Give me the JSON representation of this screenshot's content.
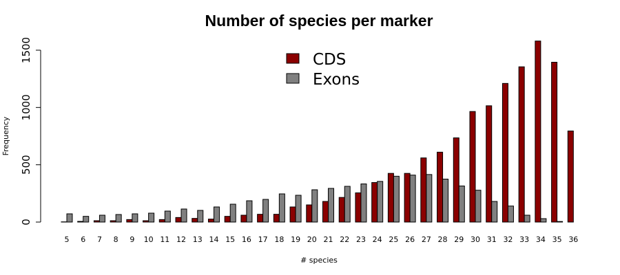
{
  "chart_data": {
    "type": "bar",
    "title": "Number of species per marker",
    "xlabel": "# species",
    "ylabel": "Frequency",
    "ylim": [
      0,
      1600
    ],
    "yticks": [
      0,
      500,
      1000,
      1500
    ],
    "grid": false,
    "legend_position": "top-center",
    "categories": [
      "5",
      "6",
      "7",
      "8",
      "9",
      "10",
      "11",
      "12",
      "13",
      "14",
      "15",
      "16",
      "17",
      "18",
      "19",
      "20",
      "21",
      "22",
      "23",
      "24",
      "25",
      "26",
      "27",
      "28",
      "29",
      "30",
      "31",
      "32",
      "33",
      "34",
      "35",
      "36"
    ],
    "series": [
      {
        "name": "CDS",
        "color": "#8b0000",
        "values": [
          2,
          6,
          12,
          12,
          22,
          12,
          22,
          40,
          32,
          26,
          50,
          60,
          68,
          68,
          132,
          150,
          180,
          215,
          255,
          345,
          425,
          425,
          560,
          610,
          735,
          965,
          1015,
          1210,
          1355,
          1580,
          1395,
          795
        ]
      },
      {
        "name": "Exons",
        "color": "#808080",
        "values": [
          72,
          50,
          60,
          66,
          72,
          78,
          96,
          114,
          102,
          132,
          156,
          186,
          198,
          246,
          234,
          282,
          294,
          312,
          333,
          355,
          400,
          410,
          415,
          375,
          315,
          278,
          180,
          140,
          60,
          30,
          5,
          0
        ]
      }
    ]
  }
}
